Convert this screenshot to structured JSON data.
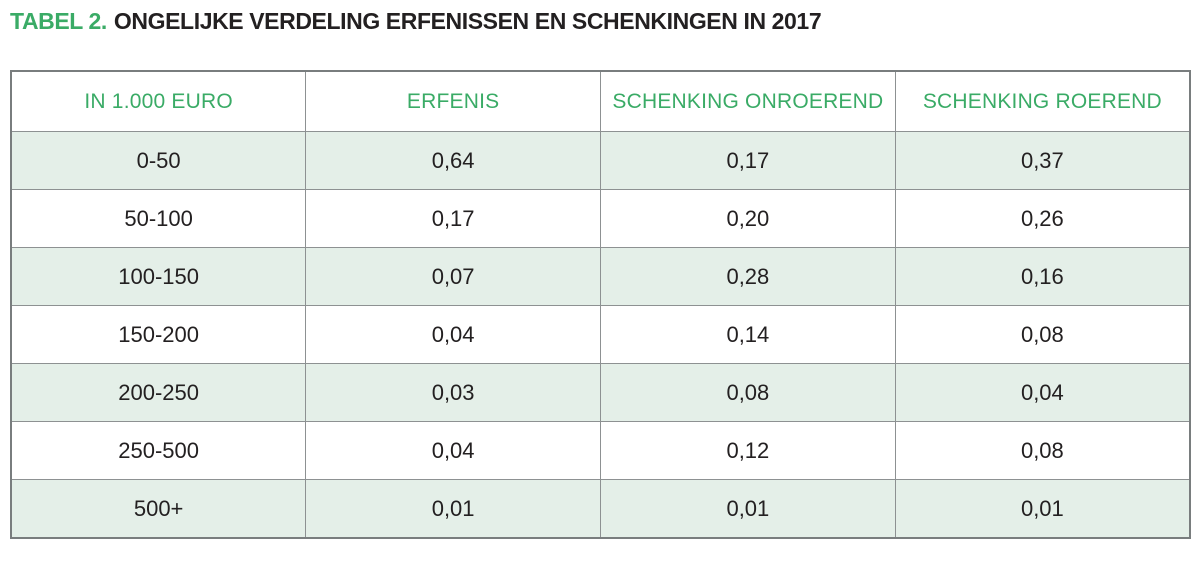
{
  "title": {
    "prefix": "TABEL 2.",
    "text": "ONGELIJKE VERDELING ERFENISSEN EN SCHENKINGEN IN 2017"
  },
  "colors": {
    "accent_green": "#3aab66",
    "row_tint": "#e4efe8",
    "text_dark": "#232021",
    "border_gray": "#8d9192"
  },
  "table": {
    "headers": [
      "IN 1.000 EURO",
      "ERFENIS",
      "SCHENKING ONROEREND",
      "SCHENKING ROEREND"
    ],
    "rows": [
      [
        "0-50",
        "0,64",
        "0,17",
        "0,37"
      ],
      [
        "50-100",
        "0,17",
        "0,20",
        "0,26"
      ],
      [
        "100-150",
        "0,07",
        "0,28",
        "0,16"
      ],
      [
        "150-200",
        "0,04",
        "0,14",
        "0,08"
      ],
      [
        "200-250",
        "0,03",
        "0,08",
        "0,04"
      ],
      [
        "250-500",
        "0,04",
        "0,12",
        "0,08"
      ],
      [
        "500+",
        "0,01",
        "0,01",
        "0,01"
      ]
    ]
  }
}
